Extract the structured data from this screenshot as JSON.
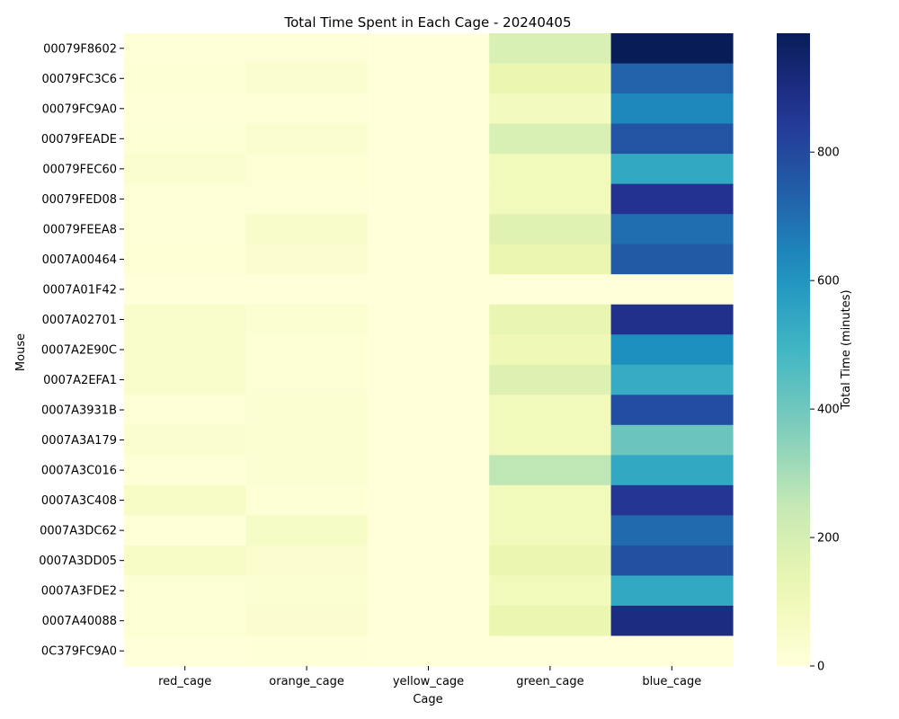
{
  "chart_data": {
    "type": "heatmap",
    "title": "Total Time Spent in Each Cage - 20240405",
    "xlabel": "Cage",
    "ylabel": "Mouse",
    "colorbar_label": "Total Time (minutes)",
    "colormap": "YlGnBu",
    "vmin": 0,
    "vmax": 985,
    "colorbar_ticks": [
      "0",
      "200",
      "400",
      "600",
      "800"
    ],
    "colorbar_tick_values": [
      0,
      200,
      400,
      600,
      800
    ],
    "columns": [
      "red_cage",
      "orange_cage",
      "yellow_cage",
      "green_cage",
      "blue_cage"
    ],
    "rows": [
      "00079F8602",
      "00079FC3C6",
      "00079FC9A0",
      "00079FEADE",
      "00079FEC60",
      "00079FED08",
      "00079FEEA8",
      "0007A00464",
      "0007A01F42",
      "0007A02701",
      "0007A2E90C",
      "0007A2EFA1",
      "0007A3931B",
      "0007A3A179",
      "0007A3C016",
      "0007A3C408",
      "0007A3DC62",
      "0007A3DD05",
      "0007A3FDE2",
      "0007A40088",
      "0C379FC9A0"
    ],
    "values": [
      [
        5,
        10,
        0,
        190,
        985
      ],
      [
        20,
        35,
        0,
        130,
        730
      ],
      [
        5,
        10,
        0,
        80,
        640
      ],
      [
        20,
        35,
        0,
        190,
        770
      ],
      [
        35,
        15,
        0,
        95,
        540
      ],
      [
        10,
        10,
        0,
        95,
        870
      ],
      [
        10,
        45,
        0,
        170,
        700
      ],
      [
        15,
        30,
        0,
        130,
        750
      ],
      [
        0,
        0,
        0,
        0,
        0
      ],
      [
        40,
        25,
        0,
        140,
        880
      ],
      [
        40,
        20,
        0,
        110,
        620
      ],
      [
        40,
        20,
        0,
        175,
        530
      ],
      [
        10,
        25,
        0,
        95,
        790
      ],
      [
        35,
        25,
        0,
        95,
        410
      ],
      [
        5,
        25,
        0,
        260,
        540
      ],
      [
        55,
        20,
        0,
        95,
        860
      ],
      [
        5,
        60,
        0,
        95,
        710
      ],
      [
        55,
        30,
        0,
        130,
        780
      ],
      [
        20,
        25,
        0,
        95,
        540
      ],
      [
        20,
        30,
        0,
        130,
        900
      ],
      [
        0,
        5,
        0,
        0,
        0
      ]
    ]
  }
}
